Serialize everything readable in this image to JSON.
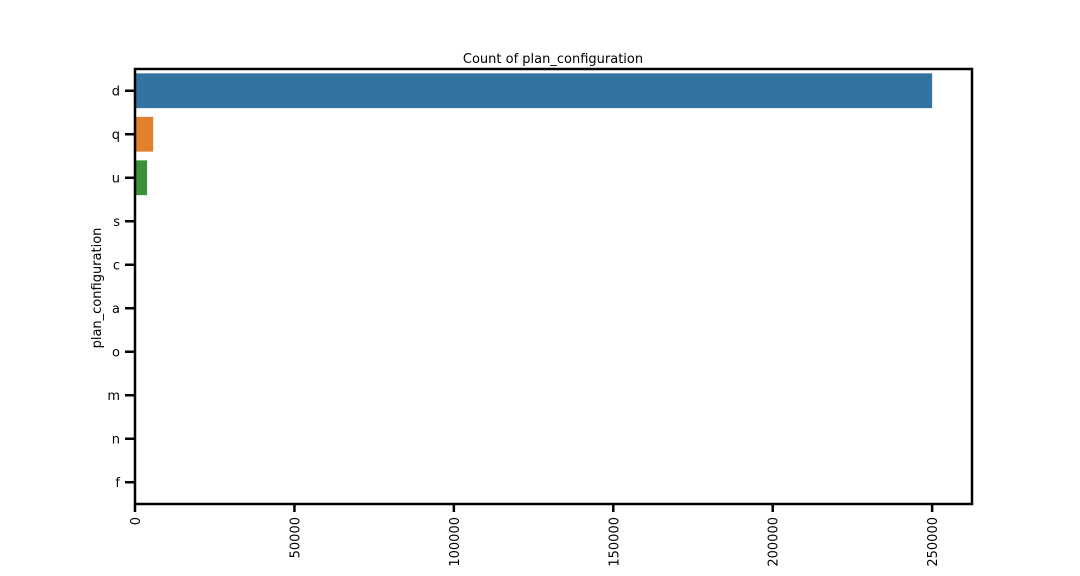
{
  "chart_data": {
    "type": "bar",
    "orientation": "horizontal",
    "title": "Count of plan_configuration",
    "ylabel": "plan_configuration",
    "xlabel": "",
    "categories": [
      "d",
      "q",
      "u",
      "s",
      "c",
      "a",
      "o",
      "m",
      "n",
      "f"
    ],
    "values": [
      250000,
      5700,
      3800,
      300,
      230,
      130,
      110,
      45,
      25,
      10
    ],
    "colors": [
      "#3274a1",
      "#e1812c",
      "#3a923a",
      "#c03d3e",
      "#9372b2",
      "#845b53",
      "#d684bd",
      "#7f7f7f",
      "#a9aa35",
      "#2eb8c6"
    ],
    "xticks": [
      0,
      50000,
      100000,
      150000,
      200000,
      250000
    ],
    "xlim": [
      0,
      262500
    ],
    "grid": false
  }
}
